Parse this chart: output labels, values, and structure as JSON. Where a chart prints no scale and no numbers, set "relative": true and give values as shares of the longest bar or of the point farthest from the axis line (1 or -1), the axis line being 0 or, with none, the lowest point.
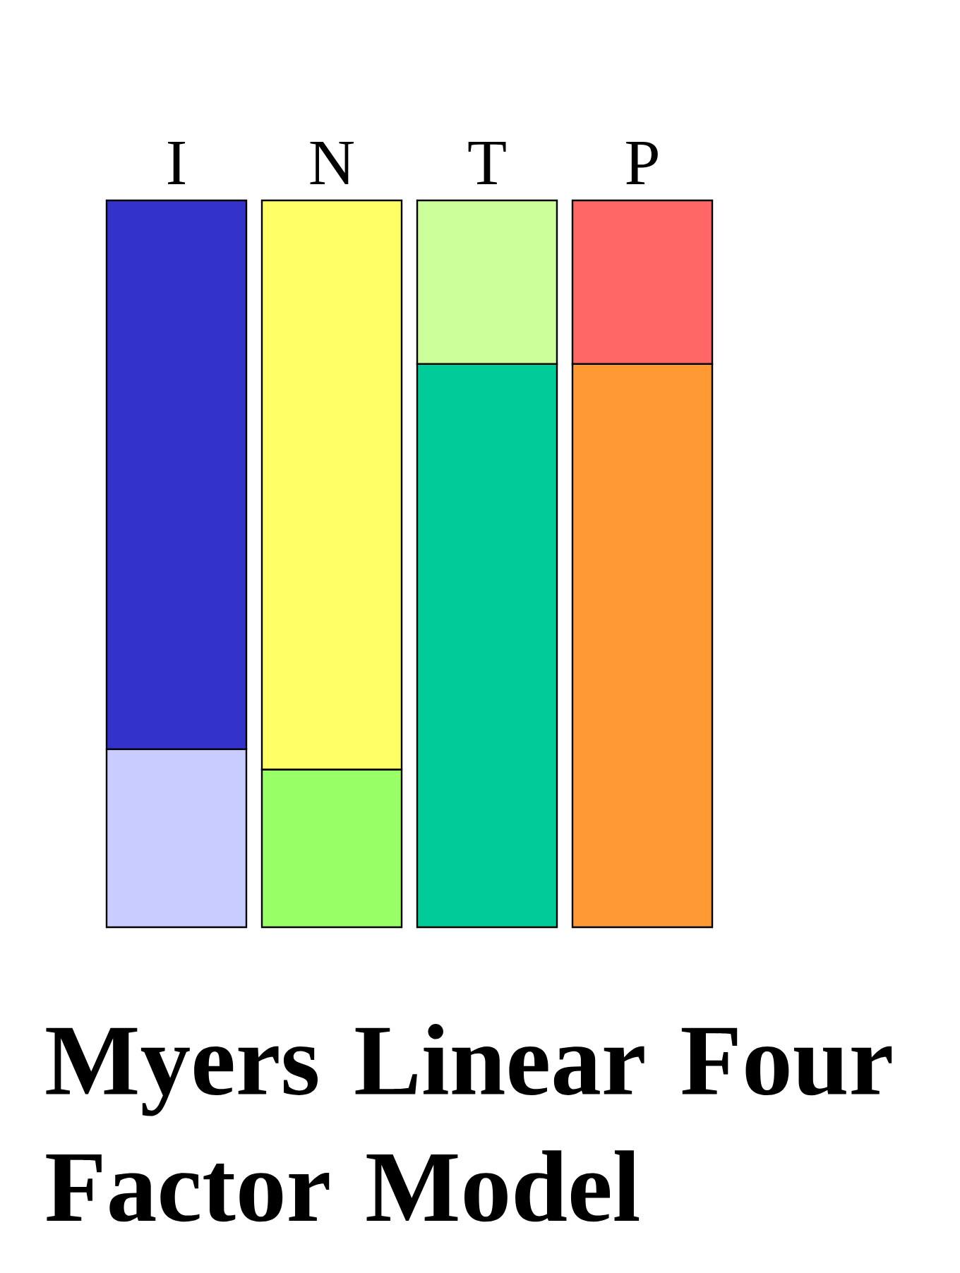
{
  "chart_data": {
    "type": "bar",
    "title": "Myers Linear Four Factor Model",
    "relative": true,
    "stacked": true,
    "categories": [
      "I",
      "N",
      "T",
      "P"
    ],
    "series": [
      {
        "values": [
          0.245,
          0.217,
          0.775,
          0.775
        ],
        "colors": [
          "#c8ccff",
          "#99ff66",
          "#00cc99",
          "#ff9933"
        ]
      },
      {
        "values": [
          0.755,
          0.783,
          0.225,
          0.225
        ],
        "colors": [
          "#3333cc",
          "#ffff66",
          "#ccff99",
          "#ff6666"
        ]
      }
    ]
  }
}
